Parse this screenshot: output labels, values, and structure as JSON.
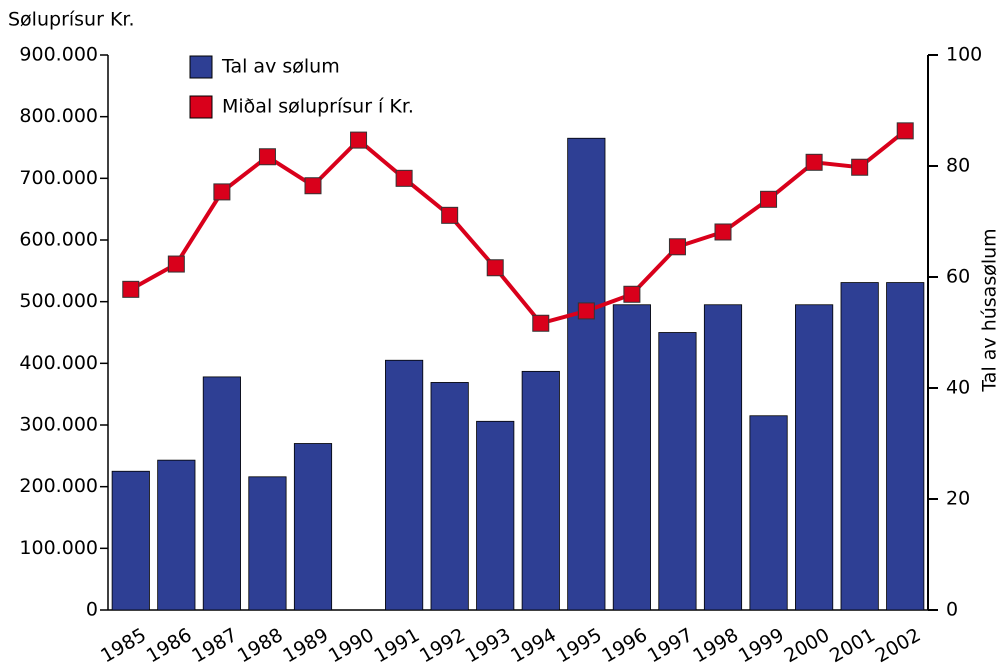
{
  "chart_data": {
    "type": "bar-line",
    "y_label": "Søluprísur Kr.",
    "y2_label": "Tal av húsasølum",
    "categories": [
      "1985",
      "1986",
      "1987",
      "1988",
      "1989",
      "1990",
      "1991",
      "1992",
      "1993",
      "1994",
      "1995",
      "1996",
      "1997",
      "1998",
      "1999",
      "2000",
      "2001",
      "2002"
    ],
    "series": [
      {
        "name": "Tal av sølum",
        "type": "bar",
        "axis": "y2",
        "color": "#2e3f94",
        "values": [
          25,
          27,
          42,
          24,
          30,
          null,
          45,
          41,
          34,
          43,
          85,
          55,
          50,
          55,
          35,
          55,
          59,
          59
        ]
      },
      {
        "name": "Miðal søluprísur í Kr.",
        "type": "line",
        "axis": "y",
        "color": "#d9001b",
        "values": [
          520000,
          561000,
          678000,
          735000,
          688000,
          762000,
          700000,
          640000,
          555000,
          465000,
          485000,
          512000,
          589000,
          613000,
          666000,
          726000,
          718000,
          777000
        ]
      }
    ],
    "ylim": [
      0,
      900000
    ],
    "yticks": [
      0,
      {
        "value": 100000,
        "label": "100.000"
      },
      {
        "value": 200000,
        "label": "200.000"
      },
      {
        "value": 300000,
        "label": "300.000"
      },
      {
        "value": 400000,
        "label": "400.000"
      },
      {
        "value": 500000,
        "label": "500.000"
      },
      {
        "value": 600000,
        "label": "600.000"
      },
      {
        "value": 700000,
        "label": "700.000"
      },
      {
        "value": 800000,
        "label": "800.000"
      },
      {
        "value": 900000,
        "label": "900.000"
      }
    ],
    "y2lim": [
      0,
      100
    ],
    "y2ticks": [
      0,
      20,
      40,
      60,
      80,
      100
    ],
    "legend": "top-left"
  }
}
